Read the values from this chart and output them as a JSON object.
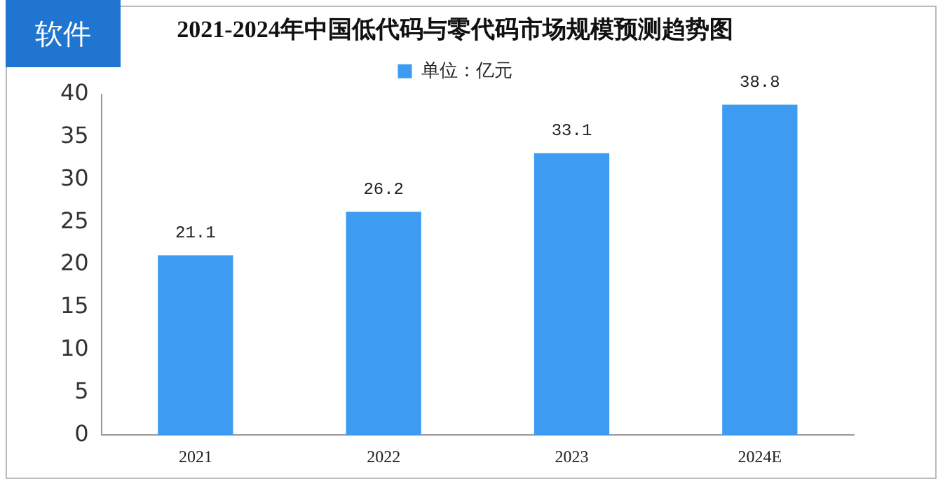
{
  "chart_data": {
    "type": "bar",
    "title": "2021-2024年中国低代码与零代码市场规模预测趋势图",
    "annotations": [
      "软件"
    ],
    "categories": [
      "2021",
      "2022",
      "2023",
      "2024E"
    ],
    "series": [
      {
        "name": "单位：亿元",
        "color": "#3d9cf2",
        "values": [
          21.1,
          26.2,
          33.1,
          38.8
        ]
      }
    ],
    "ylim": [
      0,
      40
    ],
    "yticks": [
      0,
      5,
      10,
      15,
      20,
      25,
      30,
      35,
      40
    ],
    "grid": false,
    "legend": "top",
    "data_labels": true
  }
}
